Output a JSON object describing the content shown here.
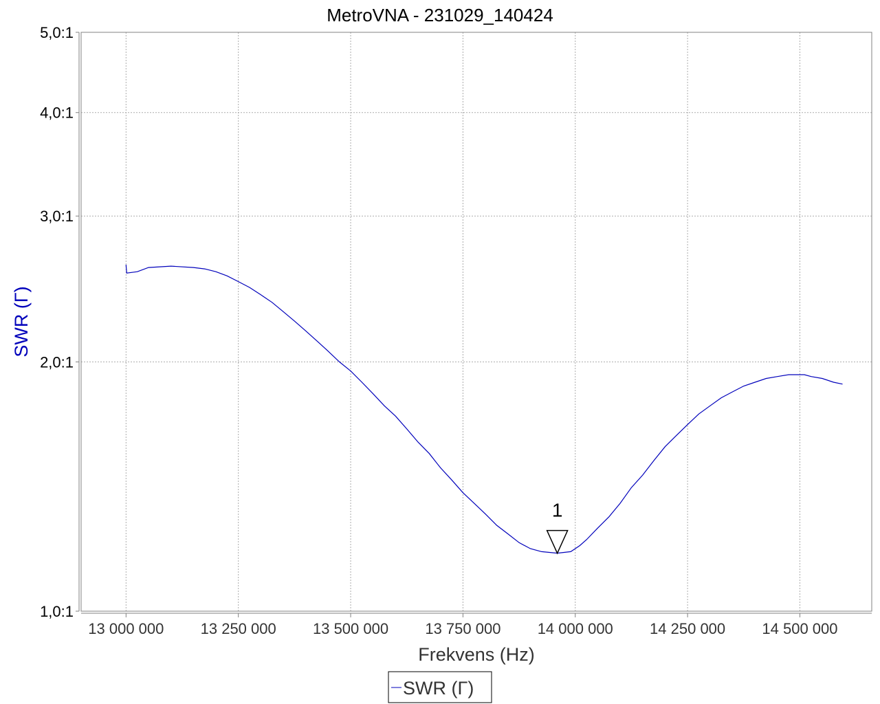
{
  "chart_data": {
    "type": "line",
    "title": "MetroVNA - 231029_140424",
    "xlabel": "Frekvens (Hz)",
    "ylabel": "SWR  (Γ)",
    "xlim": [
      12900000,
      14660000
    ],
    "ylim": [
      1.0,
      5.0
    ],
    "y_scale": "log",
    "grid": true,
    "x_ticks": [
      {
        "value": 13000000,
        "label": "13 000 000"
      },
      {
        "value": 13250000,
        "label": "13 250 000"
      },
      {
        "value": 13500000,
        "label": "13 500 000"
      },
      {
        "value": 13750000,
        "label": "13 750 000"
      },
      {
        "value": 14000000,
        "label": "14 000 000"
      },
      {
        "value": 14250000,
        "label": "14 250 000"
      },
      {
        "value": 14500000,
        "label": "14 500 000"
      }
    ],
    "y_ticks": [
      {
        "value": 1.0,
        "label": "1,0:1"
      },
      {
        "value": 2.0,
        "label": "2,0:1"
      },
      {
        "value": 3.0,
        "label": "3,0:1"
      },
      {
        "value": 4.0,
        "label": "4,0:1"
      },
      {
        "value": 5.0,
        "label": "5,0:1"
      }
    ],
    "series": [
      {
        "name": "SWR  (Γ)",
        "color": "#0000bb",
        "points": [
          [
            13000000,
            2.62
          ],
          [
            13001500,
            2.56
          ],
          [
            13025000,
            2.57
          ],
          [
            13050000,
            2.6
          ],
          [
            13100000,
            2.61
          ],
          [
            13150000,
            2.6
          ],
          [
            13175000,
            2.59
          ],
          [
            13200000,
            2.57
          ],
          [
            13225000,
            2.54
          ],
          [
            13250000,
            2.5
          ],
          [
            13275000,
            2.46
          ],
          [
            13300000,
            2.41
          ],
          [
            13325000,
            2.36
          ],
          [
            13350000,
            2.3
          ],
          [
            13375000,
            2.24
          ],
          [
            13400000,
            2.18
          ],
          [
            13425000,
            2.12
          ],
          [
            13450000,
            2.06
          ],
          [
            13475000,
            2.0
          ],
          [
            13500000,
            1.95
          ],
          [
            13525000,
            1.89
          ],
          [
            13550000,
            1.83
          ],
          [
            13575000,
            1.77
          ],
          [
            13600000,
            1.72
          ],
          [
            13625000,
            1.66
          ],
          [
            13650000,
            1.6
          ],
          [
            13675000,
            1.55
          ],
          [
            13700000,
            1.49
          ],
          [
            13725000,
            1.44
          ],
          [
            13750000,
            1.39
          ],
          [
            13775000,
            1.35
          ],
          [
            13800000,
            1.31
          ],
          [
            13825000,
            1.27
          ],
          [
            13850000,
            1.24
          ],
          [
            13875000,
            1.21
          ],
          [
            13900000,
            1.19
          ],
          [
            13925000,
            1.18
          ],
          [
            13960000,
            1.175
          ],
          [
            13990000,
            1.18
          ],
          [
            14010000,
            1.2
          ],
          [
            14025000,
            1.22
          ],
          [
            14050000,
            1.26
          ],
          [
            14075000,
            1.3
          ],
          [
            14100000,
            1.35
          ],
          [
            14125000,
            1.41
          ],
          [
            14150000,
            1.46
          ],
          [
            14175000,
            1.52
          ],
          [
            14200000,
            1.58
          ],
          [
            14225000,
            1.63
          ],
          [
            14250000,
            1.68
          ],
          [
            14275000,
            1.73
          ],
          [
            14300000,
            1.77
          ],
          [
            14325000,
            1.81
          ],
          [
            14350000,
            1.84
          ],
          [
            14375000,
            1.87
          ],
          [
            14400000,
            1.89
          ],
          [
            14425000,
            1.91
          ],
          [
            14450000,
            1.92
          ],
          [
            14475000,
            1.93
          ],
          [
            14510000,
            1.93
          ],
          [
            14525000,
            1.92
          ],
          [
            14550000,
            1.91
          ],
          [
            14575000,
            1.89
          ],
          [
            14595000,
            1.88
          ]
        ]
      }
    ],
    "markers": [
      {
        "label": "1",
        "x": 13960000,
        "y": 1.175
      }
    ],
    "legend": {
      "position": "bottom-center",
      "entries": [
        "SWR  (Γ)"
      ]
    }
  }
}
